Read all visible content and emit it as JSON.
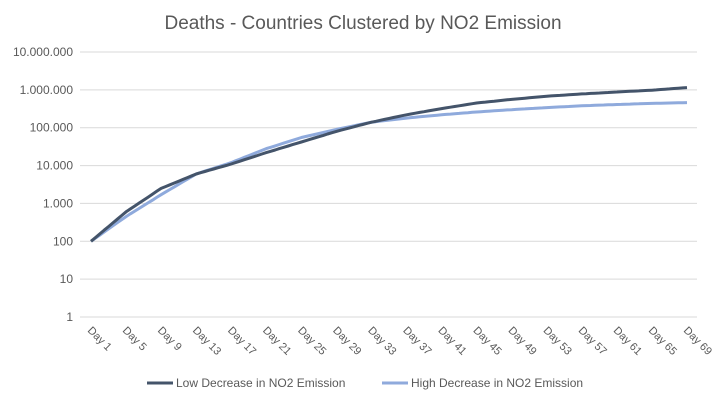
{
  "chart_data": {
    "type": "line",
    "title": "Deaths - Countries Clustered by NO2 Emission",
    "xlabel": "",
    "ylabel": "",
    "y_scale": "log",
    "ylim": [
      1,
      10000000
    ],
    "y_ticks": [
      1,
      10,
      100,
      1000,
      10000,
      100000,
      1000000,
      10000000
    ],
    "y_tick_labels": [
      "1",
      "10",
      "100",
      "1.000",
      "10.000",
      "100.000",
      "1.000.000",
      "10.000.000"
    ],
    "grid": true,
    "legend": "bottom",
    "x": [
      "Day 1",
      "Day 5",
      "Day 9",
      "Day 13",
      "Day 17",
      "Day 21",
      "Day 25",
      "Day 29",
      "Day 33",
      "Day 37",
      "Day 41",
      "Day 45",
      "Day 49",
      "Day 53",
      "Day 57",
      "Day 61",
      "Day 65",
      "Day 69"
    ],
    "series": [
      {
        "name": "Low Decrease in NO2 Emission",
        "color": "#44546a",
        "values": [
          100,
          600,
          2500,
          6000,
          11000,
          22000,
          42000,
          80000,
          140000,
          220000,
          320000,
          450000,
          560000,
          680000,
          780000,
          880000,
          980000,
          1150000
        ]
      },
      {
        "name": "High Decrease in NO2 Emission",
        "color": "#8faadc",
        "values": [
          100,
          450,
          1700,
          6000,
          12000,
          28000,
          55000,
          90000,
          140000,
          180000,
          220000,
          260000,
          300000,
          340000,
          380000,
          410000,
          440000,
          460000
        ]
      }
    ]
  }
}
